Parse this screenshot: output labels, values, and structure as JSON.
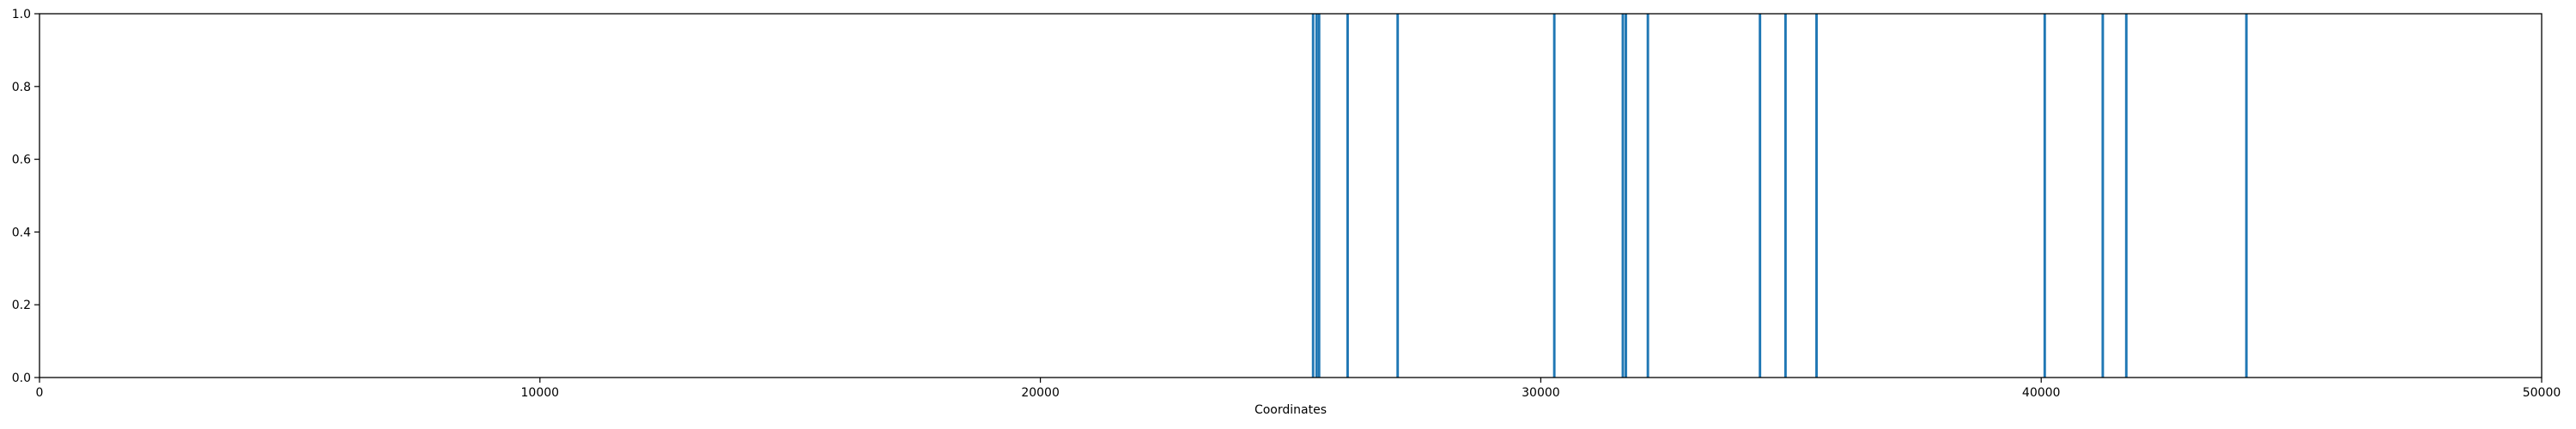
{
  "chart_data": {
    "type": "bar",
    "title": "",
    "xlabel": "Coordinates",
    "ylabel": "",
    "xlim": [
      0,
      50000
    ],
    "ylim": [
      0.0,
      1.0
    ],
    "grid": false,
    "legend": "none",
    "bar_color": "#1f77b4",
    "x_ticks": [
      {
        "value": 0,
        "label": "0"
      },
      {
        "value": 10000,
        "label": "10000"
      },
      {
        "value": 20000,
        "label": "20000"
      },
      {
        "value": 30000,
        "label": "30000"
      },
      {
        "value": 40000,
        "label": "40000"
      },
      {
        "value": 50000,
        "label": "50000"
      }
    ],
    "y_ticks": [
      {
        "value": 0.0,
        "label": "0.0"
      },
      {
        "value": 0.2,
        "label": "0.2"
      },
      {
        "value": 0.4,
        "label": "0.4"
      },
      {
        "value": 0.6,
        "label": "0.6"
      },
      {
        "value": 0.8,
        "label": "0.8"
      },
      {
        "value": 1.0,
        "label": "1.0"
      }
    ],
    "bar_width_data": 50,
    "bars": [
      {
        "x": 25450,
        "value": 1.0
      },
      {
        "x": 25520,
        "value": 1.0
      },
      {
        "x": 25570,
        "value": 1.0
      },
      {
        "x": 26140,
        "value": 1.0
      },
      {
        "x": 27140,
        "value": 1.0
      },
      {
        "x": 30270,
        "value": 1.0
      },
      {
        "x": 31640,
        "value": 1.0
      },
      {
        "x": 31700,
        "value": 1.0
      },
      {
        "x": 32140,
        "value": 1.0
      },
      {
        "x": 34380,
        "value": 1.0
      },
      {
        "x": 34890,
        "value": 1.0
      },
      {
        "x": 35510,
        "value": 1.0
      },
      {
        "x": 40070,
        "value": 1.0
      },
      {
        "x": 41230,
        "value": 1.0
      },
      {
        "x": 41700,
        "value": 1.0
      },
      {
        "x": 44100,
        "value": 1.0
      }
    ]
  }
}
